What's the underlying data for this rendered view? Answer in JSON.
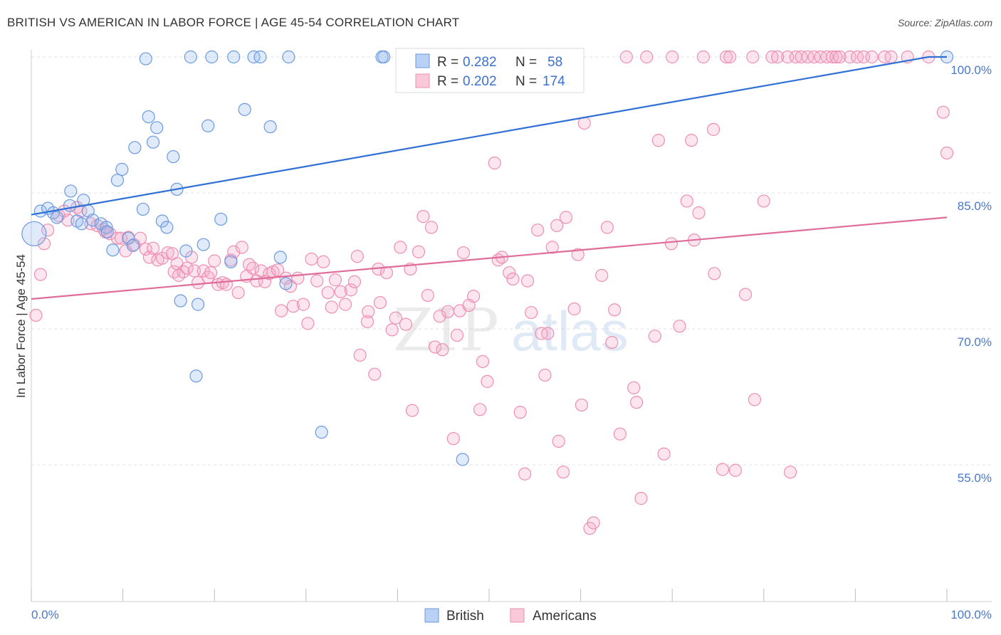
{
  "title": "BRITISH VS AMERICAN IN LABOR FORCE | AGE 45-54 CORRELATION CHART",
  "source": "Source: ZipAtlas.com",
  "colors": {
    "british": "#6b9ae0",
    "americans": "#ee8fb0",
    "british_line": "#2f6fd6",
    "americans_line": "#e06c9a",
    "tick_text": "#4a78c9"
  },
  "legend": {
    "british": {
      "r_label": "R =",
      "r_value": "0.282",
      "n_label": "N =",
      "n_value": "58"
    },
    "americans": {
      "r_label": "R =",
      "r_value": "0.202",
      "n_label": "N =",
      "n_value": "174"
    }
  },
  "bottom_legend": {
    "british": "British",
    "americans": "Americans"
  },
  "chart_data": {
    "type": "scatter",
    "title": "BRITISH VS AMERICAN IN LABOR FORCE | AGE 45-54 CORRELATION CHART",
    "xlabel": "",
    "ylabel": "In Labor Force | Age 45-54",
    "x_tick_labels": [
      "0.0%",
      "100.0%"
    ],
    "y_tick_labels": [
      "55.0%",
      "70.0%",
      "85.0%",
      "100.0%"
    ],
    "y_ticks": [
      55,
      70,
      85,
      100
    ],
    "xlim": [
      0,
      100
    ],
    "ylim": [
      39.5,
      101
    ],
    "grid": "horizontal dashed",
    "legend_placement": "top-center",
    "watermark": "ZIPatlas",
    "series": [
      {
        "name": "British",
        "trend": [
          [
            0,
            82.6
          ],
          [
            98,
            100.0
          ],
          [
            100,
            100.0
          ]
        ],
        "points": [
          [
            0.3,
            80.5
          ],
          [
            1.0,
            83.0
          ],
          [
            1.8,
            83.3
          ],
          [
            2.4,
            82.8
          ],
          [
            2.8,
            82.3
          ],
          [
            4.2,
            83.6
          ],
          [
            4.3,
            85.2
          ],
          [
            5.0,
            81.9
          ],
          [
            5.5,
            81.6
          ],
          [
            5.7,
            84.2
          ],
          [
            6.2,
            83.0
          ],
          [
            6.7,
            82.0
          ],
          [
            7.6,
            81.6
          ],
          [
            8.2,
            81.2
          ],
          [
            8.3,
            80.7
          ],
          [
            8.9,
            78.7
          ],
          [
            9.4,
            86.4
          ],
          [
            9.9,
            87.6
          ],
          [
            10.6,
            80.0
          ],
          [
            11.1,
            79.2
          ],
          [
            11.3,
            90.0
          ],
          [
            12.2,
            83.2
          ],
          [
            12.5,
            99.8
          ],
          [
            12.8,
            93.4
          ],
          [
            13.3,
            90.6
          ],
          [
            13.7,
            92.2
          ],
          [
            14.3,
            81.9
          ],
          [
            14.8,
            81.2
          ],
          [
            15.5,
            89.0
          ],
          [
            15.9,
            85.4
          ],
          [
            16.3,
            73.1
          ],
          [
            16.9,
            78.6
          ],
          [
            17.4,
            100.0
          ],
          [
            18.0,
            64.8
          ],
          [
            18.2,
            72.7
          ],
          [
            18.8,
            79.3
          ],
          [
            19.3,
            92.4
          ],
          [
            19.7,
            100.0
          ],
          [
            20.7,
            82.1
          ],
          [
            21.8,
            77.4
          ],
          [
            22.1,
            100.0
          ],
          [
            23.3,
            94.2
          ],
          [
            24.3,
            100.0
          ],
          [
            25.0,
            100.0
          ],
          [
            26.1,
            92.3
          ],
          [
            27.2,
            77.9
          ],
          [
            27.8,
            75.0
          ],
          [
            28.1,
            100.0
          ],
          [
            31.7,
            58.6
          ],
          [
            38.3,
            100.0
          ],
          [
            38.5,
            100.0
          ],
          [
            47.1,
            55.6
          ],
          [
            51.2,
            100.0
          ],
          [
            100.0,
            100.0
          ]
        ]
      },
      {
        "name": "Americans",
        "trend": [
          [
            0,
            73.3
          ],
          [
            100,
            82.3
          ]
        ],
        "points": [
          [
            0.5,
            71.5
          ],
          [
            1.0,
            76.0
          ],
          [
            1.4,
            79.4
          ],
          [
            1.8,
            80.9
          ],
          [
            3.0,
            82.5
          ],
          [
            3.6,
            83.0
          ],
          [
            4.0,
            82.0
          ],
          [
            5.0,
            83.4
          ],
          [
            5.4,
            83.0
          ],
          [
            6.5,
            81.6
          ],
          [
            7.2,
            81.4
          ],
          [
            7.9,
            81.0
          ],
          [
            8.1,
            80.7
          ],
          [
            8.6,
            80.5
          ],
          [
            9.4,
            80.0
          ],
          [
            9.8,
            80.0
          ],
          [
            10.3,
            78.6
          ],
          [
            10.6,
            80.1
          ],
          [
            11.2,
            79.3
          ],
          [
            11.9,
            80.0
          ],
          [
            12.5,
            78.8
          ],
          [
            12.9,
            77.9
          ],
          [
            13.3,
            78.9
          ],
          [
            13.8,
            77.6
          ],
          [
            14.3,
            77.8
          ],
          [
            14.9,
            78.4
          ],
          [
            15.4,
            78.3
          ],
          [
            15.6,
            76.3
          ],
          [
            15.9,
            77.2
          ],
          [
            16.1,
            75.9
          ],
          [
            16.6,
            76.3
          ],
          [
            17.0,
            76.7
          ],
          [
            17.5,
            77.9
          ],
          [
            17.8,
            76.4
          ],
          [
            18.2,
            75.1
          ],
          [
            18.8,
            76.4
          ],
          [
            19.3,
            75.7
          ],
          [
            19.6,
            76.2
          ],
          [
            20.0,
            77.5
          ],
          [
            20.4,
            74.9
          ],
          [
            20.9,
            75.1
          ],
          [
            21.3,
            74.9
          ],
          [
            21.8,
            77.6
          ],
          [
            22.1,
            78.5
          ],
          [
            22.6,
            74.0
          ],
          [
            23.0,
            79.0
          ],
          [
            23.5,
            75.8
          ],
          [
            23.8,
            77.1
          ],
          [
            24.2,
            76.7
          ],
          [
            24.6,
            75.3
          ],
          [
            25.1,
            76.4
          ],
          [
            25.5,
            75.2
          ],
          [
            26.0,
            76.1
          ],
          [
            26.4,
            76.3
          ],
          [
            26.9,
            76.5
          ],
          [
            27.3,
            72.0
          ],
          [
            27.8,
            75.6
          ],
          [
            28.3,
            74.7
          ],
          [
            28.6,
            72.5
          ],
          [
            29.1,
            75.6
          ],
          [
            29.7,
            72.7
          ],
          [
            30.2,
            70.6
          ],
          [
            30.6,
            77.7
          ],
          [
            31.2,
            75.3
          ],
          [
            31.9,
            77.4
          ],
          [
            32.4,
            74.0
          ],
          [
            32.8,
            72.4
          ],
          [
            33.2,
            75.4
          ],
          [
            33.8,
            74.1
          ],
          [
            34.3,
            72.7
          ],
          [
            34.9,
            74.3
          ],
          [
            35.3,
            75.2
          ],
          [
            35.6,
            78.0
          ],
          [
            35.9,
            67.1
          ],
          [
            36.7,
            70.8
          ],
          [
            36.8,
            71.9
          ],
          [
            37.5,
            65.0
          ],
          [
            37.9,
            76.6
          ],
          [
            38.1,
            72.9
          ],
          [
            38.8,
            76.2
          ],
          [
            39.4,
            69.9
          ],
          [
            39.8,
            71.2
          ],
          [
            40.3,
            79.0
          ],
          [
            40.9,
            70.5
          ],
          [
            41.4,
            76.6
          ],
          [
            41.6,
            61.0
          ],
          [
            42.3,
            78.5
          ],
          [
            42.8,
            82.4
          ],
          [
            43.3,
            73.7
          ],
          [
            43.7,
            81.2
          ],
          [
            44.1,
            68.0
          ],
          [
            44.6,
            71.4
          ],
          [
            44.9,
            67.7
          ],
          [
            45.5,
            71.9
          ],
          [
            46.1,
            57.9
          ],
          [
            46.5,
            69.3
          ],
          [
            46.8,
            72.0
          ],
          [
            47.2,
            78.4
          ],
          [
            47.8,
            72.6
          ],
          [
            48.3,
            73.6
          ],
          [
            49.0,
            61.1
          ],
          [
            49.3,
            66.4
          ],
          [
            49.8,
            64.2
          ],
          [
            50.6,
            88.3
          ],
          [
            51.0,
            77.6
          ],
          [
            51.4,
            77.9
          ],
          [
            52.2,
            76.2
          ],
          [
            52.6,
            75.5
          ],
          [
            53.4,
            60.8
          ],
          [
            53.9,
            54.0
          ],
          [
            54.2,
            75.3
          ],
          [
            54.6,
            71.8
          ],
          [
            55.3,
            80.9
          ],
          [
            55.7,
            69.5
          ],
          [
            56.1,
            64.9
          ],
          [
            56.4,
            69.5
          ],
          [
            56.9,
            79.0
          ],
          [
            57.4,
            81.4
          ],
          [
            57.6,
            57.6
          ],
          [
            58.1,
            54.2
          ],
          [
            58.4,
            82.3
          ],
          [
            59.3,
            72.2
          ],
          [
            59.7,
            78.2
          ],
          [
            60.1,
            61.6
          ],
          [
            60.4,
            92.7
          ],
          [
            61.0,
            48.0
          ],
          [
            61.4,
            48.6
          ],
          [
            62.3,
            75.9
          ],
          [
            62.9,
            81.2
          ],
          [
            63.4,
            68.5
          ],
          [
            63.7,
            72.1
          ],
          [
            64.3,
            58.4
          ],
          [
            65.8,
            63.5
          ],
          [
            66.1,
            61.9
          ],
          [
            66.6,
            51.3
          ],
          [
            68.1,
            69.2
          ],
          [
            68.5,
            90.8
          ],
          [
            69.1,
            56.2
          ],
          [
            69.9,
            79.4
          ],
          [
            70.8,
            70.3
          ],
          [
            71.6,
            84.1
          ],
          [
            72.4,
            79.8
          ],
          [
            72.9,
            82.8
          ],
          [
            73.4,
            100.0
          ],
          [
            74.6,
            76.1
          ],
          [
            75.5,
            54.5
          ],
          [
            75.9,
            100.0
          ],
          [
            76.3,
            100.0
          ],
          [
            76.9,
            54.4
          ],
          [
            78.0,
            73.8
          ],
          [
            79.0,
            62.2
          ],
          [
            80.0,
            84.1
          ],
          [
            82.6,
            100.0
          ],
          [
            82.9,
            54.2
          ],
          [
            83.5,
            100.0
          ],
          [
            84.1,
            100.0
          ],
          [
            84.8,
            100.0
          ],
          [
            85.5,
            100.0
          ],
          [
            86.2,
            100.0
          ],
          [
            86.9,
            100.0
          ],
          [
            87.5,
            100.0
          ],
          [
            87.9,
            100.0
          ],
          [
            88.3,
            100.0
          ],
          [
            89.4,
            100.0
          ],
          [
            90.2,
            100.0
          ],
          [
            90.9,
            100.0
          ],
          [
            91.8,
            100.0
          ],
          [
            93.2,
            100.0
          ],
          [
            93.9,
            100.0
          ],
          [
            95.7,
            100.0
          ],
          [
            98.0,
            100.0
          ],
          [
            99.6,
            93.9
          ],
          [
            100.0,
            89.4
          ],
          [
            72.1,
            90.8
          ],
          [
            74.5,
            92.0
          ],
          [
            78.8,
            100.0
          ],
          [
            80.9,
            100.0
          ],
          [
            81.5,
            100.0
          ],
          [
            67.2,
            100.0
          ],
          [
            70.0,
            100.0
          ],
          [
            65.0,
            100.0
          ]
        ]
      }
    ]
  }
}
